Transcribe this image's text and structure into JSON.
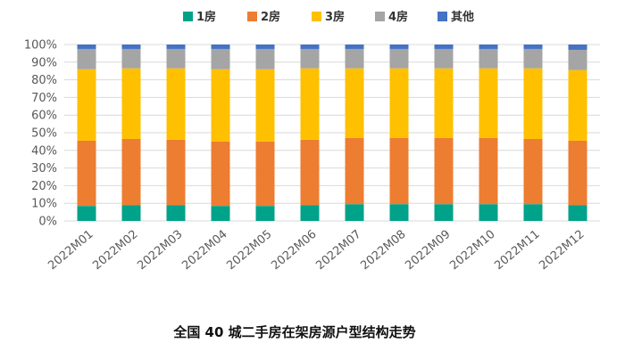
{
  "chart_data": {
    "type": "bar",
    "stacked": true,
    "normalized": true,
    "title": "全国 40 城二手房在架房源户型结构走势",
    "xlabel": "",
    "ylabel": "",
    "ylim": [
      0,
      100
    ],
    "y_ticks": [
      "0%",
      "10%",
      "20%",
      "30%",
      "40%",
      "50%",
      "60%",
      "70%",
      "80%",
      "90%",
      "100%"
    ],
    "legend_position": "top",
    "categories": [
      "2022M01",
      "2022M02",
      "2022M03",
      "2022M04",
      "2022M05",
      "2022M06",
      "2022M07",
      "2022M08",
      "2022M09",
      "2022M10",
      "2022M11",
      "2022M12"
    ],
    "series": [
      {
        "name": "1房",
        "color": "#00a28a",
        "values": [
          8.5,
          9,
          9,
          8.5,
          8.5,
          9,
          9.5,
          9.5,
          9.5,
          9.5,
          9.5,
          9
        ]
      },
      {
        "name": "2房",
        "color": "#ed7d31",
        "values": [
          37,
          37.5,
          37,
          36.5,
          36.5,
          37,
          37.5,
          37.5,
          37.5,
          37.5,
          37,
          36.5
        ]
      },
      {
        "name": "3房",
        "color": "#ffc000",
        "values": [
          40.5,
          40,
          40.5,
          41,
          41,
          40.5,
          39.5,
          39.5,
          39.5,
          39.5,
          40,
          40
        ]
      },
      {
        "name": "4房",
        "color": "#a5a5a5",
        "values": [
          11.5,
          11,
          11,
          11.5,
          11.5,
          11,
          11,
          11,
          11,
          11,
          11,
          11.5
        ]
      },
      {
        "name": "其他",
        "color": "#4472c4",
        "values": [
          2.5,
          2.5,
          2.5,
          2.5,
          2.5,
          2.5,
          2.5,
          2.5,
          2.5,
          2.5,
          2.5,
          3
        ]
      }
    ]
  }
}
